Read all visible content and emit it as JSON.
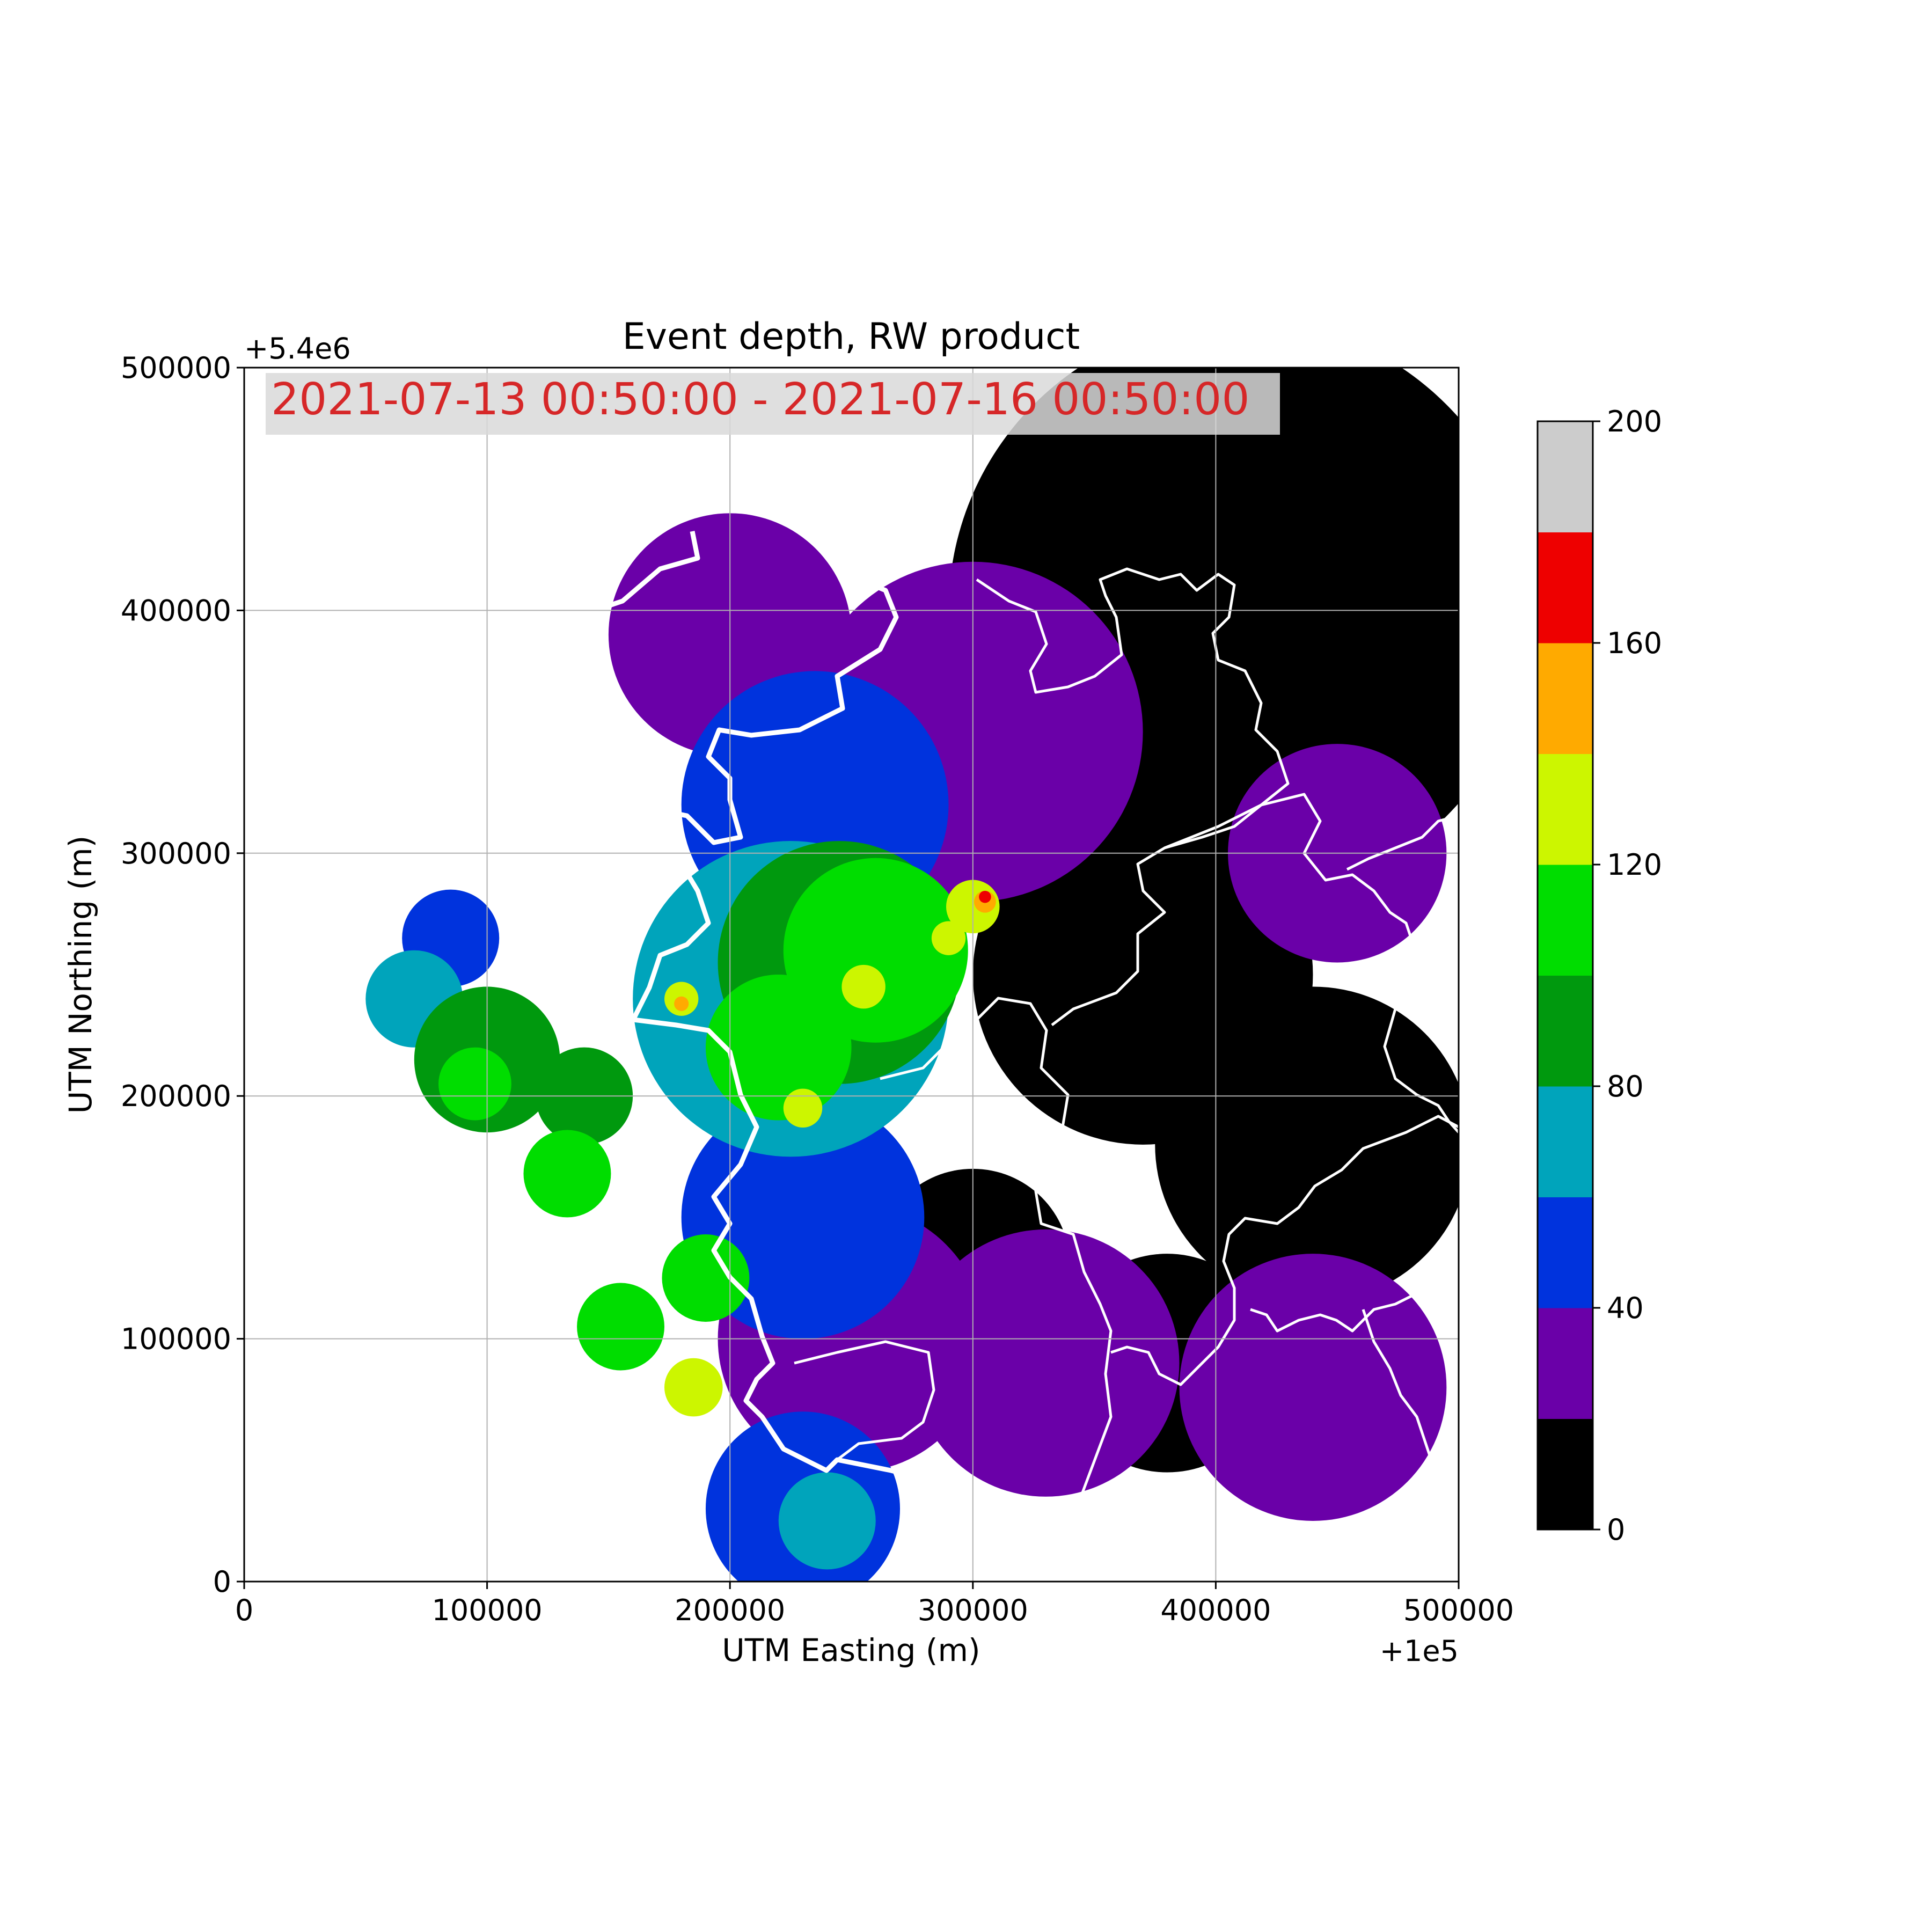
{
  "chart_data": {
    "type": "heatmap",
    "title": "Event depth, RW product",
    "annotation": "2021-07-13 00:50:00 - 2021-07-16 00:50:00",
    "annotation_color": "#d62728",
    "xlabel": "UTM Easting (m)",
    "ylabel": "UTM Northing (m)",
    "x_offset_label": "+1e5",
    "y_offset_label": "+5.4e6",
    "xlim": [
      0,
      500000
    ],
    "ylim": [
      0,
      500000
    ],
    "x_ticks": [
      0,
      100000,
      200000,
      300000,
      400000,
      500000
    ],
    "y_ticks": [
      0,
      100000,
      200000,
      300000,
      400000,
      500000
    ],
    "x_tick_labels": [
      "0",
      "100000",
      "200000",
      "300000",
      "400000",
      "500000"
    ],
    "y_tick_labels": [
      "0",
      "100000",
      "200000",
      "300000",
      "400000",
      "500000"
    ],
    "grid": true,
    "colorbar": {
      "range": [
        0,
        200
      ],
      "ticks": [
        0,
        40,
        80,
        120,
        160,
        200
      ],
      "tick_labels": [
        "0",
        "40",
        "80",
        "120",
        "160",
        "200"
      ],
      "bands": [
        {
          "from": 0,
          "to": 20,
          "color": "#000000"
        },
        {
          "from": 20,
          "to": 40,
          "color": "#6a00a8"
        },
        {
          "from": 40,
          "to": 60,
          "color": "#0033dd"
        },
        {
          "from": 60,
          "to": 80,
          "color": "#00a4bb"
        },
        {
          "from": 80,
          "to": 100,
          "color": "#00990e"
        },
        {
          "from": 100,
          "to": 120,
          "color": "#00dd00"
        },
        {
          "from": 120,
          "to": 140,
          "color": "#ccf600"
        },
        {
          "from": 140,
          "to": 160,
          "color": "#ffaa00"
        },
        {
          "from": 160,
          "to": 180,
          "color": "#ee0000"
        },
        {
          "from": 180,
          "to": 200,
          "color": "#cccccc"
        }
      ]
    },
    "regions": [
      {
        "depth": 10,
        "x": 410000,
        "y": 400000,
        "r": 120000
      },
      {
        "depth": 10,
        "x": 370000,
        "y": 250000,
        "r": 70000
      },
      {
        "depth": 10,
        "x": 440000,
        "y": 180000,
        "r": 65000
      },
      {
        "depth": 10,
        "x": 380000,
        "y": 90000,
        "r": 45000
      },
      {
        "depth": 10,
        "x": 300000,
        "y": 130000,
        "r": 40000
      },
      {
        "depth": 30,
        "x": 300000,
        "y": 350000,
        "r": 70000
      },
      {
        "depth": 30,
        "x": 200000,
        "y": 390000,
        "r": 50000
      },
      {
        "depth": 30,
        "x": 450000,
        "y": 300000,
        "r": 45000
      },
      {
        "depth": 30,
        "x": 330000,
        "y": 90000,
        "r": 55000
      },
      {
        "depth": 30,
        "x": 440000,
        "y": 80000,
        "r": 55000
      },
      {
        "depth": 30,
        "x": 250000,
        "y": 100000,
        "r": 55000
      },
      {
        "depth": 50,
        "x": 235000,
        "y": 320000,
        "r": 55000
      },
      {
        "depth": 50,
        "x": 230000,
        "y": 150000,
        "r": 50000
      },
      {
        "depth": 50,
        "x": 85000,
        "y": 265000,
        "r": 20000
      },
      {
        "depth": 50,
        "x": 230000,
        "y": 30000,
        "r": 40000
      },
      {
        "depth": 70,
        "x": 225000,
        "y": 240000,
        "r": 65000
      },
      {
        "depth": 70,
        "x": 70000,
        "y": 240000,
        "r": 20000
      },
      {
        "depth": 70,
        "x": 240000,
        "y": 25000,
        "r": 20000
      },
      {
        "depth": 90,
        "x": 245000,
        "y": 255000,
        "r": 50000
      },
      {
        "depth": 90,
        "x": 100000,
        "y": 215000,
        "r": 30000
      },
      {
        "depth": 90,
        "x": 140000,
        "y": 200000,
        "r": 20000
      },
      {
        "depth": 110,
        "x": 260000,
        "y": 260000,
        "r": 38000
      },
      {
        "depth": 110,
        "x": 220000,
        "y": 220000,
        "r": 30000
      },
      {
        "depth": 110,
        "x": 133000,
        "y": 168000,
        "r": 18000
      },
      {
        "depth": 110,
        "x": 155000,
        "y": 105000,
        "r": 18000
      },
      {
        "depth": 110,
        "x": 190000,
        "y": 125000,
        "r": 18000
      },
      {
        "depth": 110,
        "x": 95000,
        "y": 205000,
        "r": 15000
      },
      {
        "depth": 130,
        "x": 300000,
        "y": 278000,
        "r": 11000
      },
      {
        "depth": 130,
        "x": 255000,
        "y": 245000,
        "r": 9000
      },
      {
        "depth": 130,
        "x": 230000,
        "y": 195000,
        "r": 8000
      },
      {
        "depth": 130,
        "x": 180000,
        "y": 240000,
        "r": 7000
      },
      {
        "depth": 130,
        "x": 185000,
        "y": 80000,
        "r": 12000
      },
      {
        "depth": 130,
        "x": 290000,
        "y": 265000,
        "r": 7000
      },
      {
        "depth": 150,
        "x": 305000,
        "y": 280000,
        "r": 4500
      },
      {
        "depth": 150,
        "x": 180000,
        "y": 238000,
        "r": 3000
      },
      {
        "depth": 170,
        "x": 305000,
        "y": 282000,
        "r": 2500
      }
    ]
  }
}
